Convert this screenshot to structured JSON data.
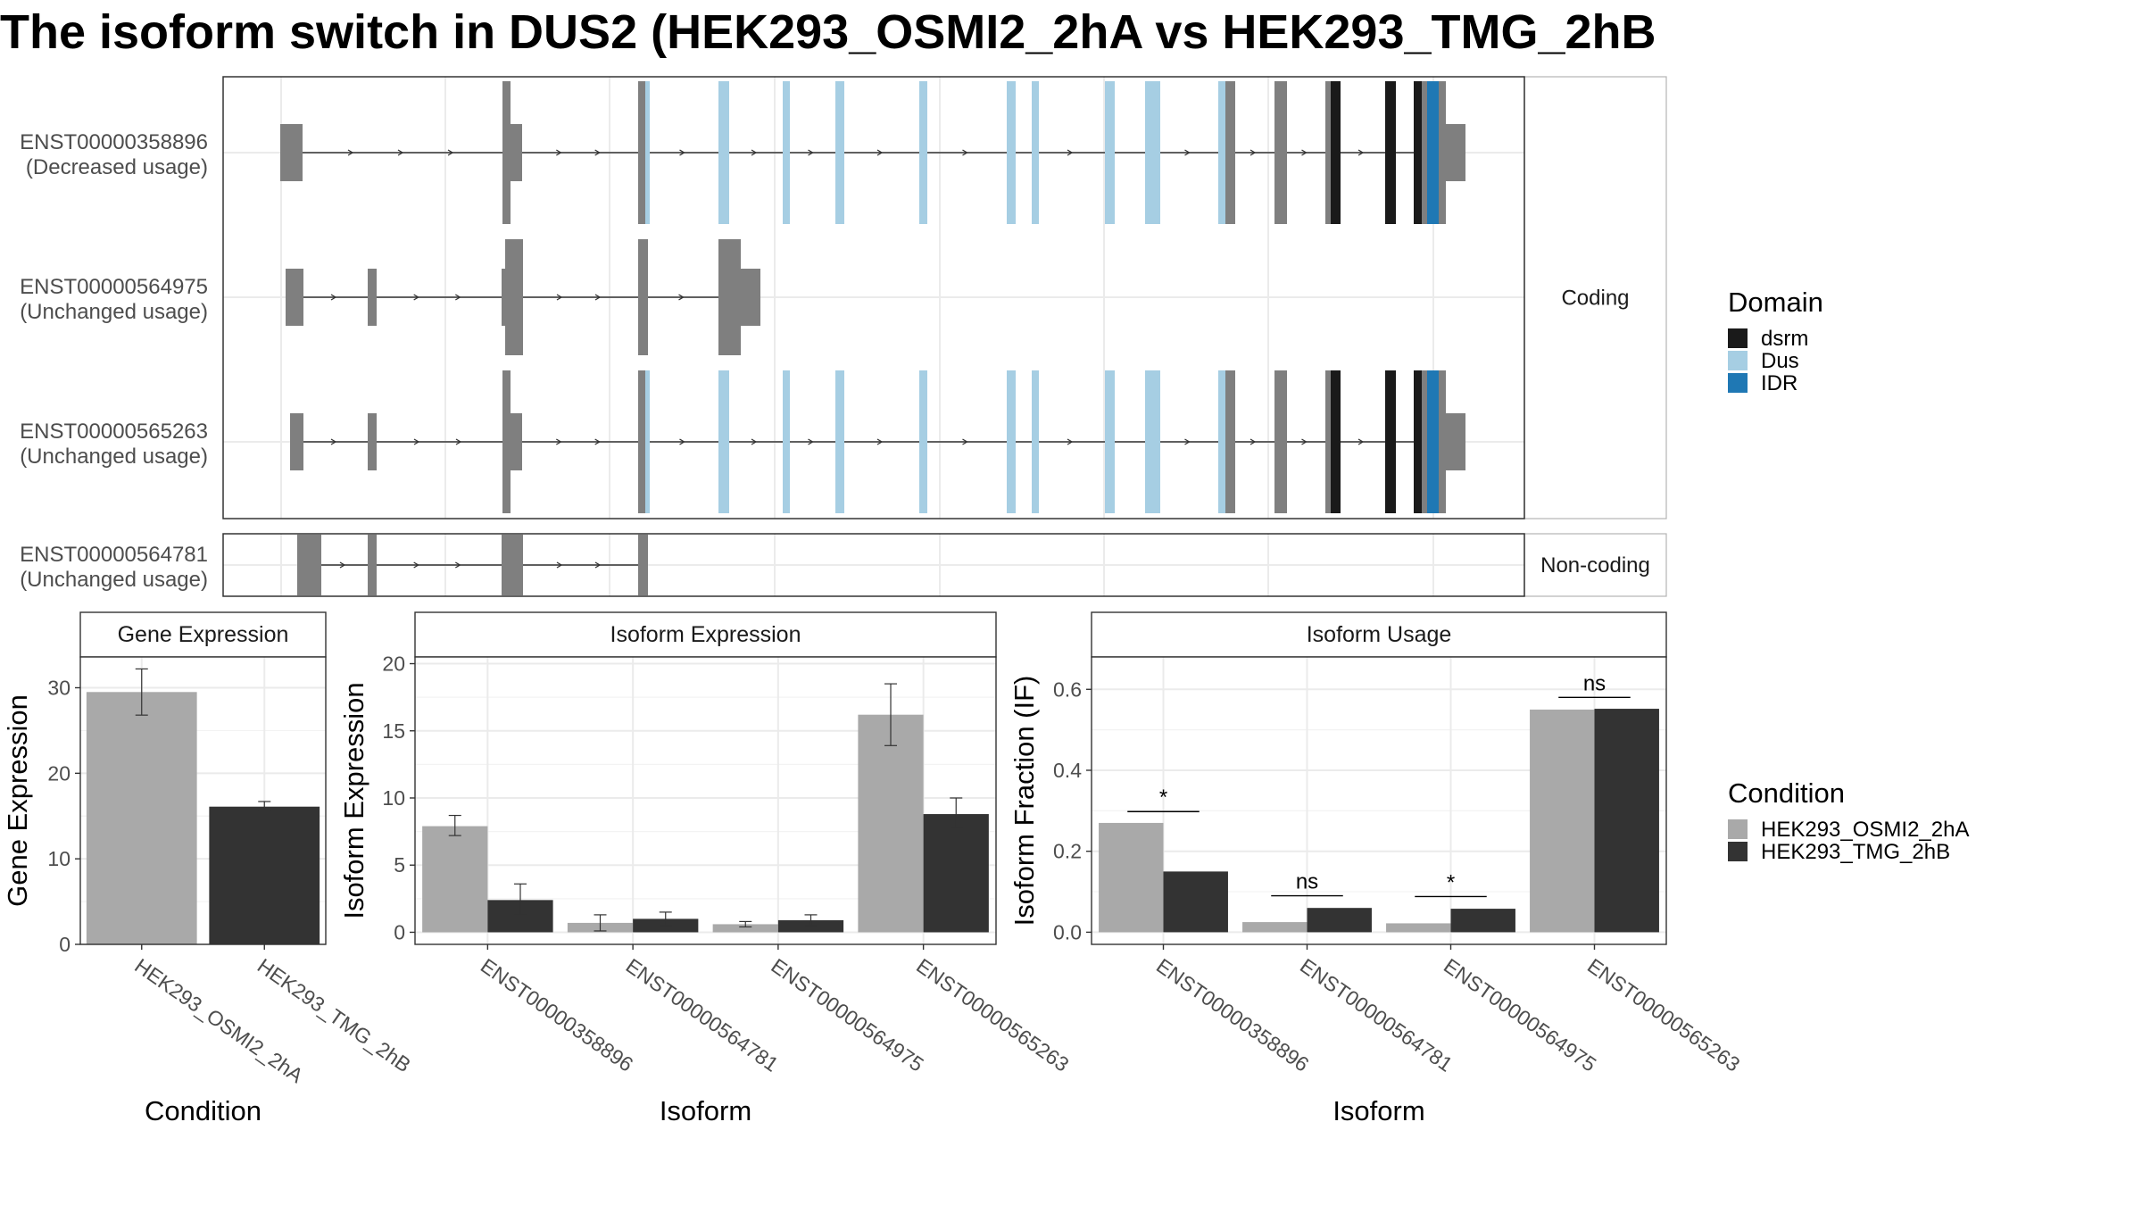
{
  "title": "The isoform switch in DUS2 (HEK293_OSMI2_2hA vs HEK293_TMG_2hB",
  "colors": {
    "exon": "#7f7f7f",
    "dsrm": "#1a1a1a",
    "Dus": "#a6cee3",
    "IDR": "#1f78b4",
    "cond1": "#a9a9a9",
    "cond2": "#333333",
    "grid": "#ebebeb",
    "strip_bg": "#ffffff",
    "text_dark": "#1a1a1a",
    "text_axis": "#4d4d4d"
  },
  "transcripts": [
    {
      "id": "ENST00000358896",
      "usage": "(Decreased usage)",
      "group": "coding"
    },
    {
      "id": "ENST00000564975",
      "usage": "(Unchanged usage)",
      "group": "coding"
    },
    {
      "id": "ENST00000565263",
      "usage": "(Unchanged usage)",
      "group": "coding"
    },
    {
      "id": "ENST00000564781",
      "usage": "(Unchanged usage)",
      "group": "noncoding"
    }
  ],
  "facets": {
    "coding": "Coding",
    "noncoding": "Non-coding"
  },
  "domain_legend": {
    "title": "Domain",
    "items": [
      "dsrm",
      "Dus",
      "IDR"
    ]
  },
  "condition_legend": {
    "title": "Condition",
    "items": [
      "HEK293_OSMI2_2hA",
      "HEK293_TMG_2hB"
    ]
  },
  "chart_data": [
    {
      "type": "bar",
      "title": "Gene Expression",
      "xlabel": "Condition",
      "ylabel": "Gene Expression",
      "categories": [
        "HEK293_OSMI2_2hA",
        "HEK293_TMG_2hB"
      ],
      "values": [
        29.5,
        16.1
      ],
      "error_low": [
        26.8,
        15.6
      ],
      "error_high": [
        32.2,
        16.7
      ],
      "ylim": [
        0,
        33.6
      ],
      "yticks": [
        0,
        10,
        20,
        30
      ]
    },
    {
      "type": "bar",
      "title": "Isoform Expression",
      "xlabel": "Isoform",
      "ylabel": "Isoform Expression",
      "categories": [
        "ENST00000358896",
        "ENST00000564781",
        "ENST00000564975",
        "ENST00000565263"
      ],
      "series": [
        {
          "name": "HEK293_OSMI2_2hA",
          "values": [
            7.9,
            0.7,
            0.6,
            16.2
          ],
          "error_low": [
            7.2,
            0.1,
            0.4,
            13.9
          ],
          "error_high": [
            8.7,
            1.3,
            0.8,
            18.5
          ]
        },
        {
          "name": "HEK293_TMG_2hB",
          "values": [
            2.4,
            1.0,
            0.9,
            8.8
          ],
          "error_low": [
            1.3,
            0.5,
            0.5,
            7.8
          ],
          "error_high": [
            3.6,
            1.5,
            1.3,
            10.0
          ]
        }
      ],
      "ylim": [
        -0.9,
        20.5
      ],
      "yticks": [
        0,
        5,
        10,
        15,
        20
      ]
    },
    {
      "type": "bar",
      "title": "Isoform Usage",
      "xlabel": "Isoform",
      "ylabel": "Isoform Fraction (IF)",
      "categories": [
        "ENST00000358896",
        "ENST00000564781",
        "ENST00000564975",
        "ENST00000565263"
      ],
      "series": [
        {
          "name": "HEK293_OSMI2_2hA",
          "values": [
            0.27,
            0.025,
            0.022,
            0.55
          ]
        },
        {
          "name": "HEK293_TMG_2hB",
          "values": [
            0.15,
            0.06,
            0.058,
            0.552
          ]
        }
      ],
      "significance": [
        {
          "label": "*",
          "y": 0.298
        },
        {
          "label": "ns",
          "y": 0.09
        },
        {
          "label": "*",
          "y": 0.088
        },
        {
          "label": "ns",
          "y": 0.58
        }
      ],
      "ylim": [
        -0.03,
        0.68
      ],
      "yticks": [
        0.0,
        0.2,
        0.4,
        0.6
      ],
      "ytick_labels": [
        "0.0",
        "0.2",
        "0.4",
        "0.6"
      ]
    }
  ]
}
